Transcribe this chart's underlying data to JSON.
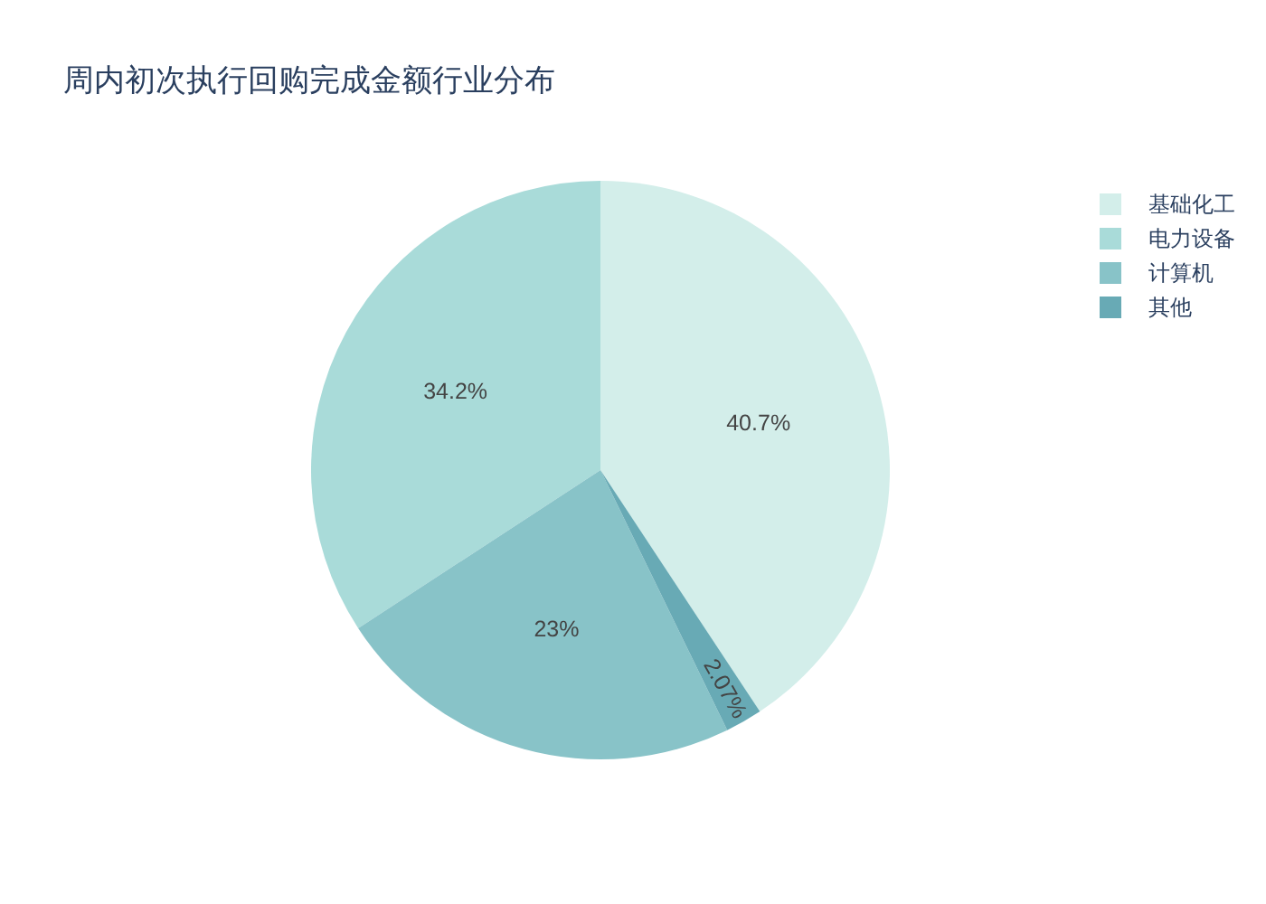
{
  "chart_data": {
    "type": "pie",
    "title": "周内初次执行回购完成金额行业分布",
    "categories": [
      "基础化工",
      "电力设备",
      "计算机",
      "其他"
    ],
    "values": [
      40.7,
      34.2,
      23,
      2.07
    ],
    "colors": [
      "#d3eeea",
      "#a9dbd9",
      "#88c3c8",
      "#68aab5"
    ],
    "value_labels": [
      "40.7%",
      "34.2%",
      "23%",
      "2.07%"
    ],
    "legend": "top right"
  }
}
